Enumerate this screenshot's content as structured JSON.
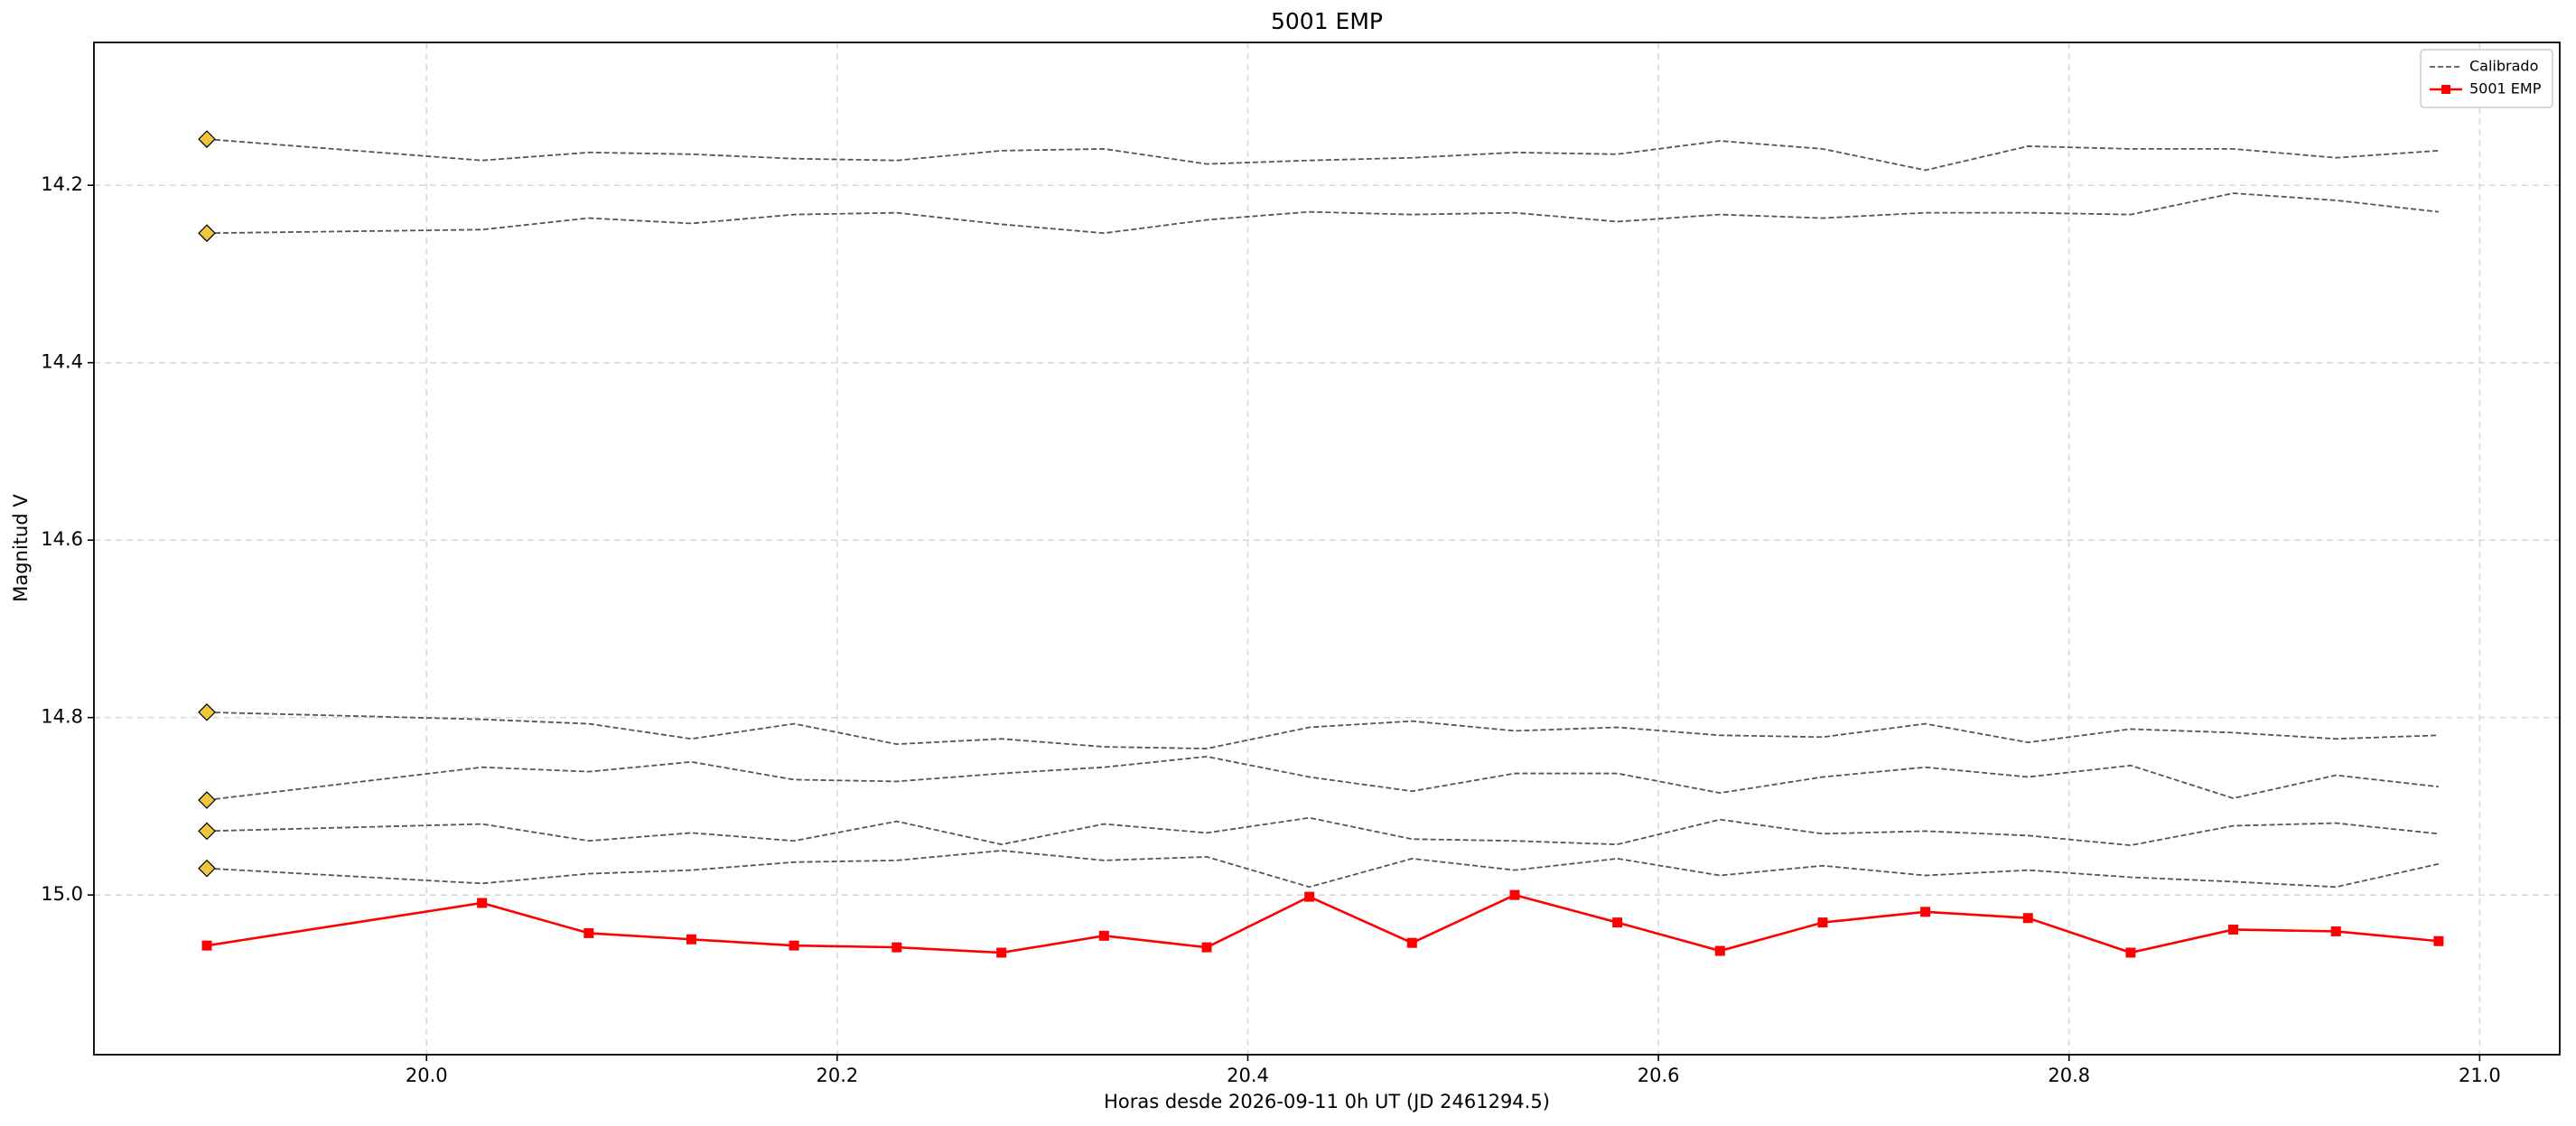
{
  "chart_data": {
    "type": "line",
    "title": "5001 EMP",
    "xlabel": "Horas desde 2026-09-11 0h UT (JD 2461294.5)",
    "ylabel": "Magnitud V",
    "x": [
      19.893,
      20.027,
      20.079,
      20.129,
      20.179,
      20.229,
      20.28,
      20.33,
      20.38,
      20.43,
      20.48,
      20.53,
      20.58,
      20.63,
      20.68,
      20.73,
      20.78,
      20.83,
      20.88,
      20.93,
      20.98
    ],
    "xlim": [
      19.838,
      21.039
    ],
    "ylim": [
      15.18,
      14.039
    ],
    "xticks": [
      {
        "value": 20,
        "label": "20.0"
      },
      20.2,
      20.4,
      20.6,
      20.8,
      {
        "value": 21,
        "label": "21.0"
      }
    ],
    "yticks": [
      14.2,
      14.4,
      14.6,
      14.8,
      {
        "value": 15,
        "label": "15.0"
      }
    ],
    "grid": true,
    "legend": "upper right",
    "start_marker_color": "#f0c63c",
    "series": [
      {
        "name": "Calibrado",
        "color": "#555555",
        "style": "dashed",
        "start_marker": true,
        "values": [
          14.148,
          14.172,
          14.163,
          14.165,
          14.17,
          14.172,
          14.161,
          14.159,
          14.176,
          14.172,
          14.169,
          14.163,
          14.165,
          14.15,
          14.159,
          14.183,
          14.156,
          14.159,
          14.159,
          14.169,
          14.161
        ]
      },
      {
        "color": "#555555",
        "style": "dashed",
        "start_marker": true,
        "values": [
          14.254,
          14.25,
          14.237,
          14.243,
          14.233,
          14.231,
          14.244,
          14.254,
          14.239,
          14.23,
          14.233,
          14.231,
          14.241,
          14.233,
          14.237,
          14.231,
          14.231,
          14.233,
          14.209,
          14.217,
          14.23
        ]
      },
      {
        "color": "#555555",
        "style": "dashed",
        "start_marker": true,
        "values": [
          14.794,
          14.802,
          14.807,
          14.824,
          14.807,
          14.83,
          14.824,
          14.833,
          14.835,
          14.811,
          14.804,
          14.815,
          14.811,
          14.82,
          14.822,
          14.807,
          14.828,
          14.813,
          14.817,
          14.824,
          14.82
        ]
      },
      {
        "color": "#555555",
        "style": "dashed",
        "start_marker": true,
        "values": [
          14.893,
          14.856,
          14.861,
          14.85,
          14.87,
          14.872,
          14.863,
          14.856,
          14.844,
          14.867,
          14.883,
          14.863,
          14.863,
          14.885,
          14.867,
          14.856,
          14.867,
          14.854,
          14.891,
          14.865,
          14.878
        ]
      },
      {
        "color": "#555555",
        "style": "dashed",
        "start_marker": true,
        "values": [
          14.928,
          14.92,
          14.939,
          14.93,
          14.939,
          14.917,
          14.943,
          14.92,
          14.93,
          14.913,
          14.937,
          14.939,
          14.943,
          14.915,
          14.931,
          14.928,
          14.933,
          14.944,
          14.922,
          14.919,
          14.931
        ]
      },
      {
        "color": "#555555",
        "style": "dashed",
        "start_marker": true,
        "values": [
          14.97,
          14.987,
          14.976,
          14.972,
          14.963,
          14.961,
          14.95,
          14.961,
          14.957,
          14.991,
          14.959,
          14.972,
          14.959,
          14.978,
          14.967,
          14.978,
          14.972,
          14.98,
          14.985,
          14.991,
          14.965
        ]
      },
      {
        "name": "5001 EMP",
        "color": "#ff0000",
        "style": "solid",
        "marker": "square",
        "values": [
          15.057,
          15.009,
          15.043,
          15.05,
          15.057,
          15.059,
          15.065,
          15.046,
          15.059,
          15.002,
          15.054,
          15.0,
          15.031,
          15.063,
          15.031,
          15.019,
          15.026,
          15.065,
          15.039,
          15.041,
          15.052
        ]
      }
    ]
  }
}
